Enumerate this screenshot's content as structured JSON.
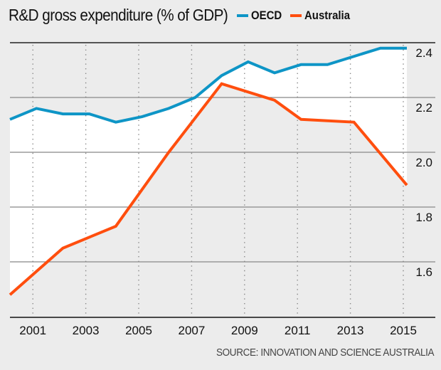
{
  "chart_data": {
    "type": "line",
    "title": "R&D gross expenditure (% of GDP)",
    "xlabel": "",
    "ylabel": "",
    "x": [
      2000,
      2001,
      2002,
      2003,
      2004,
      2005,
      2006,
      2007,
      2008,
      2009,
      2010,
      2011,
      2012,
      2013,
      2014,
      2015
    ],
    "series": [
      {
        "name": "OECD",
        "color": "#0e95c6",
        "values": [
          2.12,
          2.16,
          2.14,
          2.14,
          2.11,
          2.13,
          2.16,
          2.2,
          2.28,
          2.33,
          2.29,
          2.32,
          2.32,
          2.35,
          2.38,
          2.38
        ]
      },
      {
        "name": "Australia",
        "color": "#ff4e0e",
        "x": [
          2000,
          2002,
          2004,
          2006,
          2008,
          2010,
          2011,
          2013,
          2015
        ],
        "values": [
          1.48,
          1.65,
          1.73,
          2.0,
          2.25,
          2.19,
          2.12,
          2.11,
          1.88
        ]
      }
    ],
    "fill_between": "white",
    "xticks": [
      "2001",
      "2003",
      "2005",
      "2007",
      "2009",
      "2011",
      "2013",
      "2015"
    ],
    "xtick_values": [
      2001,
      2003,
      2005,
      2007,
      2009,
      2011,
      2013,
      2015
    ],
    "yticks": [
      "2.4",
      "2.2",
      "2.0",
      "1.8",
      "1.6"
    ],
    "ytick_values": [
      2.4,
      2.2,
      2.0,
      1.8,
      1.6
    ],
    "ylim": [
      1.4,
      2.4
    ],
    "xlim": [
      2000,
      2015.2
    ],
    "grid": true,
    "legend": "top",
    "source": "SOURCE: INNOVATION AND SCIENCE AUSTRALIA"
  },
  "header": {
    "title": "R&D gross expenditure (% of GDP)",
    "legend": [
      {
        "label": "OECD",
        "color": "#0e95c6"
      },
      {
        "label": "Australia",
        "color": "#ff4e0e"
      }
    ]
  },
  "footer": {
    "source": "SOURCE: INNOVATION AND SCIENCE AUSTRALIA"
  }
}
